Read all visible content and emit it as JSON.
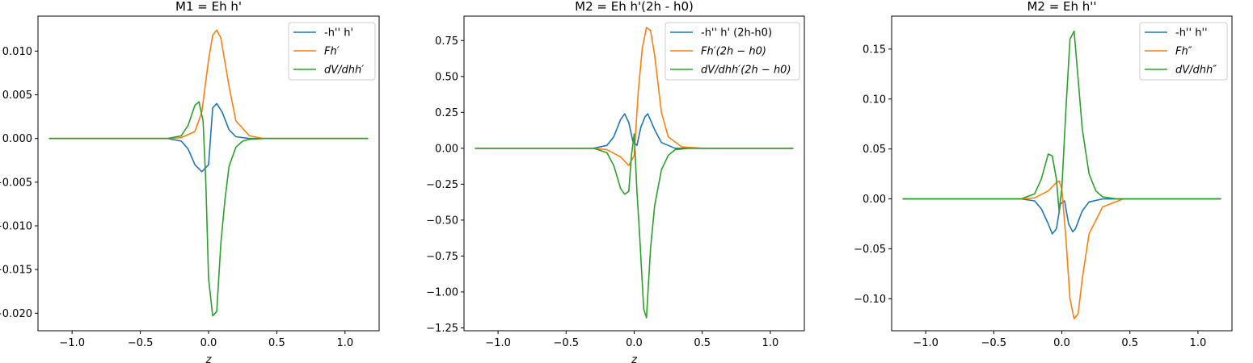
{
  "chart_data": [
    {
      "type": "line",
      "title": "M1 = Eh h'",
      "xlabel": "z",
      "ylabel": "",
      "xlim": [
        -1.25,
        1.25
      ],
      "ylim": [
        -0.022,
        0.014
      ],
      "xticks": [
        -1.0,
        -0.5,
        0.0,
        0.5,
        1.0
      ],
      "xtick_labels": [
        "−1.0",
        "−0.5",
        "0.0",
        "0.5",
        "1.0"
      ],
      "yticks": [
        0.01,
        0.005,
        0.0,
        -0.005,
        -0.01,
        -0.015,
        -0.02
      ],
      "ytick_labels": [
        "0.010",
        "0.005",
        "0.000",
        "−0.005",
        "−0.010",
        "−0.015",
        "−0.020"
      ],
      "legend_position": "top-right",
      "grid": false,
      "series": [
        {
          "name": "-h'' h'",
          "color": "#1f77b4",
          "italic": false,
          "x": [
            -1.17,
            -0.3,
            -0.2,
            -0.15,
            -0.1,
            -0.05,
            0.0,
            0.03,
            0.06,
            0.1,
            0.15,
            0.2,
            0.3,
            1.17
          ],
          "y": [
            0.0,
            0.0,
            -0.0003,
            -0.0012,
            -0.003,
            -0.0038,
            -0.003,
            0.0035,
            0.004,
            0.003,
            0.001,
            0.0002,
            0.0,
            0.0
          ]
        },
        {
          "name": "Fh′",
          "color": "#ff7f0e",
          "italic": true,
          "x": [
            -1.17,
            -0.3,
            -0.2,
            -0.1,
            -0.05,
            0.0,
            0.03,
            0.06,
            0.09,
            0.15,
            0.2,
            0.3,
            0.4,
            1.17
          ],
          "y": [
            0.0,
            0.0,
            0.0001,
            0.0008,
            0.003,
            0.009,
            0.0118,
            0.0124,
            0.0115,
            0.006,
            0.002,
            0.0003,
            0.0,
            0.0
          ]
        },
        {
          "name": "dV/dhh′",
          "color": "#2ca02c",
          "italic": true,
          "x": [
            -1.17,
            -0.3,
            -0.2,
            -0.15,
            -0.1,
            -0.07,
            -0.04,
            -0.02,
            0.0,
            0.03,
            0.06,
            0.09,
            0.12,
            0.15,
            0.2,
            0.25,
            0.3,
            0.4,
            1.17
          ],
          "y": [
            0.0,
            0.0,
            0.0003,
            0.0015,
            0.0038,
            0.0042,
            0.002,
            -0.005,
            -0.016,
            -0.0203,
            -0.0198,
            -0.012,
            -0.007,
            -0.0032,
            -0.001,
            -0.0003,
            -0.0001,
            0.0,
            0.0
          ]
        }
      ]
    },
    {
      "type": "line",
      "title": "M2 = Eh h'(2h - h0)",
      "xlabel": "z",
      "ylabel": "",
      "xlim": [
        -1.25,
        1.25
      ],
      "ylim": [
        -1.27,
        0.92
      ],
      "xticks": [
        -1.0,
        -0.5,
        0.0,
        0.5,
        1.0
      ],
      "xtick_labels": [
        "−1.0",
        "−0.5",
        "0.0",
        "0.5",
        "1.0"
      ],
      "yticks": [
        0.75,
        0.5,
        0.25,
        0.0,
        -0.25,
        -0.5,
        -0.75,
        -1.0,
        -1.25
      ],
      "ytick_labels": [
        "0.75",
        "0.50",
        "0.25",
        "0.00",
        "−0.25",
        "−0.50",
        "−0.75",
        "−1.00",
        "−1.25"
      ],
      "legend_position": "top-right",
      "grid": false,
      "series": [
        {
          "name": "-h'' h' (2h-h0)",
          "color": "#1f77b4",
          "italic": false,
          "x": [
            -1.17,
            -0.3,
            -0.2,
            -0.15,
            -0.1,
            -0.07,
            -0.04,
            -0.01,
            0.02,
            0.05,
            0.08,
            0.1,
            0.15,
            0.2,
            0.3,
            1.17
          ],
          "y": [
            0.0,
            0.0,
            0.02,
            0.08,
            0.2,
            0.24,
            0.18,
            0.05,
            0.02,
            0.15,
            0.22,
            0.24,
            0.13,
            0.04,
            0.0,
            0.0
          ]
        },
        {
          "name": "Fh′(2h − h0)",
          "color": "#ff7f0e",
          "italic": true,
          "x": [
            -1.17,
            -0.3,
            -0.2,
            -0.1,
            -0.04,
            0.0,
            0.03,
            0.06,
            0.09,
            0.12,
            0.15,
            0.2,
            0.25,
            0.35,
            0.5,
            1.17
          ],
          "y": [
            0.0,
            0.0,
            -0.01,
            -0.06,
            -0.12,
            -0.05,
            0.4,
            0.7,
            0.84,
            0.82,
            0.65,
            0.25,
            0.08,
            0.01,
            0.0,
            0.0
          ]
        },
        {
          "name": "dV/dhh′(2h − h0)",
          "color": "#2ca02c",
          "italic": true,
          "x": [
            -1.17,
            -0.3,
            -0.2,
            -0.15,
            -0.1,
            -0.07,
            -0.04,
            -0.02,
            0.0,
            0.02,
            0.04,
            0.07,
            0.09,
            0.12,
            0.15,
            0.2,
            0.25,
            0.3,
            0.4,
            1.17
          ],
          "y": [
            0.0,
            0.0,
            -0.03,
            -0.12,
            -0.28,
            -0.32,
            -0.3,
            -0.05,
            0.1,
            -0.3,
            -0.6,
            -1.12,
            -1.18,
            -0.7,
            -0.4,
            -0.15,
            -0.05,
            -0.01,
            0.0,
            0.0
          ]
        }
      ]
    },
    {
      "type": "line",
      "title": "M2 = Eh h''",
      "xlabel": "",
      "ylabel": "",
      "xlim": [
        -1.25,
        1.25
      ],
      "ylim": [
        -0.132,
        0.183
      ],
      "xticks": [
        -1.0,
        -0.5,
        0.0,
        0.5,
        1.0
      ],
      "xtick_labels": [
        "−1.0",
        "−0.5",
        "0.0",
        "0.5",
        "1.0"
      ],
      "yticks": [
        0.15,
        0.1,
        0.05,
        0.0,
        -0.05,
        -0.1
      ],
      "ytick_labels": [
        "0.15",
        "0.10",
        "0.05",
        "0.00",
        "−0.05",
        "−0.10"
      ],
      "legend_position": "top-right",
      "grid": false,
      "series": [
        {
          "name": "-h'' h''",
          "color": "#1f77b4",
          "italic": false,
          "x": [
            -1.17,
            -0.3,
            -0.2,
            -0.15,
            -0.1,
            -0.07,
            -0.04,
            -0.01,
            0.02,
            0.05,
            0.08,
            0.1,
            0.15,
            0.2,
            0.3,
            1.17
          ],
          "y": [
            0.0,
            0.0,
            -0.002,
            -0.01,
            -0.025,
            -0.035,
            -0.03,
            -0.005,
            -0.002,
            -0.025,
            -0.033,
            -0.03,
            -0.012,
            -0.003,
            0.0,
            0.0
          ]
        },
        {
          "name": "Fh″",
          "color": "#ff7f0e",
          "italic": true,
          "x": [
            -1.17,
            -0.3,
            -0.2,
            -0.1,
            -0.05,
            -0.02,
            0.0,
            0.03,
            0.06,
            0.09,
            0.12,
            0.15,
            0.2,
            0.3,
            0.45,
            1.17
          ],
          "y": [
            0.0,
            0.0,
            0.001,
            0.008,
            0.015,
            0.018,
            0.01,
            -0.04,
            -0.1,
            -0.12,
            -0.115,
            -0.08,
            -0.035,
            -0.008,
            0.0,
            0.0
          ]
        },
        {
          "name": "dV/dhh″",
          "color": "#2ca02c",
          "italic": true,
          "x": [
            -1.17,
            -0.3,
            -0.2,
            -0.15,
            -0.1,
            -0.07,
            -0.04,
            -0.02,
            0.0,
            0.03,
            0.06,
            0.09,
            0.12,
            0.15,
            0.2,
            0.25,
            0.3,
            0.4,
            1.17
          ],
          "y": [
            0.0,
            0.0,
            0.005,
            0.02,
            0.045,
            0.043,
            0.02,
            -0.012,
            0.01,
            0.09,
            0.16,
            0.168,
            0.12,
            0.07,
            0.025,
            0.008,
            0.002,
            0.0,
            0.0
          ]
        }
      ]
    }
  ]
}
